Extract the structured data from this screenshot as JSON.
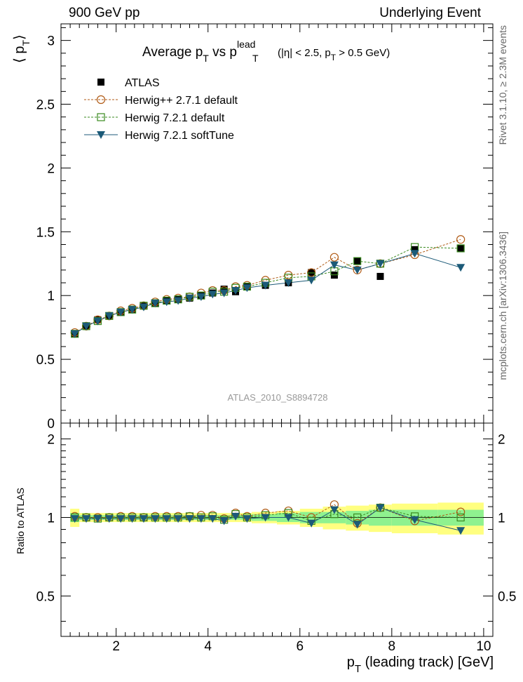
{
  "header": {
    "left": "900 GeV pp",
    "right": "Underlying Event"
  },
  "side": {
    "rivet": "Rivet 3.1.10, ≥ 2.3M events",
    "mcplots": "mcplots.cern.ch [arXiv:1306.3436]"
  },
  "chart_data": {
    "type": "scatter",
    "title_main": "Average p",
    "title_sub1": "T",
    "title_vs": " vs p",
    "title_sup": "lead",
    "title_sub2": "T",
    "title_cut1": "(|η| < 2.5, p",
    "title_cut_sub": "T",
    "title_cut2": " > 0.5 GeV)",
    "watermark": "ATLAS_2010_S8894728",
    "ylabel_main": "⟨ p",
    "ylabel_sub": "T",
    "ylabel_close": "⟩",
    "ylabel_ratio": "Ratio to ATLAS",
    "xlabel_main": "p",
    "xlabel_sub": "T",
    "xlabel_rest": " (leading track) [GeV]",
    "xlim": [
      0.8,
      10.2
    ],
    "ylim_main": [
      0,
      3.13
    ],
    "ylim_ratio": [
      0.35,
      2.3
    ],
    "xticks": [
      "2",
      "4",
      "6",
      "8",
      "10"
    ],
    "yticks_main": [
      "0",
      "0.5",
      "1",
      "1.5",
      "2",
      "2.5",
      "3"
    ],
    "yticks_ratio": [
      "0.5",
      "1",
      "2"
    ],
    "legend_placement": "top-left",
    "x": [
      1.1,
      1.35,
      1.6,
      1.85,
      2.1,
      2.35,
      2.6,
      2.85,
      3.1,
      3.35,
      3.6,
      3.85,
      4.1,
      4.35,
      4.6,
      4.85,
      5.25,
      5.75,
      6.25,
      6.75,
      7.25,
      7.75,
      8.5,
      9.5
    ],
    "band_x": [
      [
        1.0,
        1.2
      ],
      [
        1.2,
        1.45
      ],
      [
        1.45,
        1.7
      ],
      [
        1.7,
        1.95
      ],
      [
        1.95,
        2.2
      ],
      [
        2.2,
        2.45
      ],
      [
        2.45,
        2.7
      ],
      [
        2.7,
        2.95
      ],
      [
        2.95,
        3.2
      ],
      [
        3.2,
        3.45
      ],
      [
        3.45,
        3.7
      ],
      [
        3.7,
        3.95
      ],
      [
        3.95,
        4.2
      ],
      [
        4.2,
        4.45
      ],
      [
        4.45,
        4.7
      ],
      [
        4.7,
        4.95
      ],
      [
        4.95,
        5.5
      ],
      [
        5.5,
        6.0
      ],
      [
        6.0,
        6.5
      ],
      [
        6.5,
        7.0
      ],
      [
        7.0,
        7.5
      ],
      [
        7.5,
        8.0
      ],
      [
        8.0,
        9.0
      ],
      [
        9.0,
        10.0
      ]
    ],
    "band_green": [
      0.04,
      0.02,
      0.02,
      0.02,
      0.02,
      0.02,
      0.02,
      0.02,
      0.02,
      0.02,
      0.02,
      0.02,
      0.02,
      0.02,
      0.02,
      0.02,
      0.03,
      0.04,
      0.05,
      0.05,
      0.06,
      0.07,
      0.07,
      0.07
    ],
    "band_yellow": [
      0.08,
      0.04,
      0.04,
      0.04,
      0.04,
      0.04,
      0.04,
      0.04,
      0.04,
      0.04,
      0.04,
      0.04,
      0.04,
      0.04,
      0.04,
      0.04,
      0.05,
      0.06,
      0.08,
      0.1,
      0.11,
      0.12,
      0.13,
      0.14
    ],
    "series": [
      {
        "name": "ATLAS",
        "color": "#000000",
        "marker": "square-filled",
        "values": [
          0.7,
          0.76,
          0.81,
          0.84,
          0.87,
          0.89,
          0.92,
          0.94,
          0.96,
          0.97,
          0.98,
          1.0,
          1.02,
          1.05,
          1.03,
          1.07,
          1.08,
          1.1,
          1.18,
          1.16,
          1.27,
          1.15,
          1.36,
          1.37
        ]
      },
      {
        "name": "Herwig++ 2.7.1 default",
        "color": "#b05a14",
        "marker": "circle-open",
        "dash": true,
        "values": [
          0.71,
          0.76,
          0.81,
          0.84,
          0.88,
          0.9,
          0.92,
          0.95,
          0.97,
          0.98,
          0.99,
          1.02,
          1.04,
          1.04,
          1.07,
          1.08,
          1.12,
          1.16,
          1.18,
          1.3,
          1.2,
          1.25,
          1.32,
          1.44
        ],
        "ratio": [
          1.01,
          1.0,
          1.0,
          1.0,
          1.01,
          1.01,
          1.0,
          1.01,
          1.01,
          1.01,
          1.01,
          1.02,
          1.02,
          0.99,
          1.04,
          1.01,
          1.04,
          1.06,
          1.0,
          1.12,
          0.95,
          1.09,
          0.97,
          1.05
        ]
      },
      {
        "name": "Herwig 7.2.1 default",
        "color": "#3a8a1f",
        "marker": "square-open",
        "dash": true,
        "values": [
          0.7,
          0.76,
          0.8,
          0.84,
          0.87,
          0.89,
          0.92,
          0.94,
          0.96,
          0.97,
          0.99,
          1.0,
          1.03,
          1.03,
          1.06,
          1.07,
          1.1,
          1.14,
          1.15,
          1.19,
          1.27,
          1.25,
          1.38,
          1.37
        ],
        "ratio": [
          1.0,
          1.0,
          0.99,
          1.0,
          1.0,
          1.0,
          1.0,
          1.0,
          1.0,
          1.0,
          1.01,
          1.0,
          1.01,
          0.98,
          1.03,
          1.0,
          1.02,
          1.04,
          0.97,
          1.03,
          1.0,
          1.09,
          1.01,
          1.0
        ]
      },
      {
        "name": "Herwig 7.2.1 softTune",
        "color": "#1c5a78",
        "marker": "triangle-down-filled",
        "dash": false,
        "values": [
          0.7,
          0.76,
          0.8,
          0.84,
          0.87,
          0.89,
          0.91,
          0.94,
          0.95,
          0.96,
          0.98,
          0.99,
          1.01,
          1.02,
          1.04,
          1.06,
          1.08,
          1.1,
          1.12,
          1.24,
          1.2,
          1.25,
          1.33,
          1.22
        ],
        "ratio": [
          0.99,
          0.99,
          0.99,
          0.99,
          0.99,
          0.99,
          0.99,
          0.99,
          0.99,
          0.99,
          0.99,
          0.99,
          0.99,
          0.97,
          1.01,
          0.99,
          1.0,
          1.0,
          0.95,
          1.07,
          0.94,
          1.09,
          0.98,
          0.89
        ]
      }
    ]
  }
}
